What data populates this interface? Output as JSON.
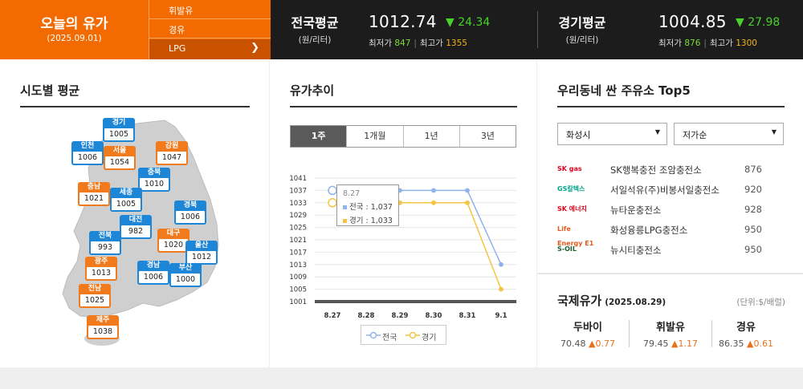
{
  "header": {
    "today_title": "오늘의 유가",
    "today_date": "(2025.09.01)",
    "fuels": [
      "휘발유",
      "경유",
      "LPG"
    ],
    "selected_fuel": "LPG",
    "national": {
      "label": "전국평균",
      "unit": "(원/리터)",
      "price": "1012.74",
      "change": "▼ 24.34",
      "min_label": "최저가",
      "min": "847",
      "max_label": "최고가",
      "max": "1355"
    },
    "gyeonggi": {
      "label": "경기평균",
      "unit": "(원/리터)",
      "price": "1004.85",
      "change": "▼ 27.98",
      "min_label": "최저가",
      "min": "876",
      "max_label": "최고가",
      "max": "1300"
    }
  },
  "regional": {
    "title": "시도별 평균",
    "regions": [
      {
        "name": "경기",
        "value": "1005",
        "color": "blue"
      },
      {
        "name": "인천",
        "value": "1006",
        "color": "blue"
      },
      {
        "name": "서울",
        "value": "1054",
        "color": "orange"
      },
      {
        "name": "강원",
        "value": "1047",
        "color": "orange"
      },
      {
        "name": "충북",
        "value": "1010",
        "color": "blue"
      },
      {
        "name": "충남",
        "value": "1021",
        "color": "orange"
      },
      {
        "name": "세종",
        "value": "1005",
        "color": "blue"
      },
      {
        "name": "경북",
        "value": "1006",
        "color": "blue"
      },
      {
        "name": "대전",
        "value": "982",
        "color": "blue"
      },
      {
        "name": "전북",
        "value": "993",
        "color": "blue"
      },
      {
        "name": "대구",
        "value": "1020",
        "color": "orange"
      },
      {
        "name": "울산",
        "value": "1012",
        "color": "blue"
      },
      {
        "name": "광주",
        "value": "1013",
        "color": "orange"
      },
      {
        "name": "경남",
        "value": "1006",
        "color": "blue"
      },
      {
        "name": "부산",
        "value": "1000",
        "color": "blue"
      },
      {
        "name": "전남",
        "value": "1025",
        "color": "orange"
      },
      {
        "name": "제주",
        "value": "1038",
        "color": "orange"
      }
    ]
  },
  "trend": {
    "title": "유가추이",
    "tabs": [
      "1주",
      "1개월",
      "1년",
      "3년"
    ],
    "selected_tab": "1주",
    "tooltip": {
      "date": "8.27",
      "national": "전국 : 1,037",
      "gyeonggi": "경기 : 1,033"
    }
  },
  "chart_data": {
    "type": "line",
    "x": [
      "8.27",
      "8.28",
      "8.29",
      "8.30",
      "8.31",
      "9.1"
    ],
    "series": [
      {
        "name": "전국",
        "values": [
          1037,
          1037,
          1037,
          1037,
          1037,
          1013
        ],
        "color": "#8fb4ea"
      },
      {
        "name": "경기",
        "values": [
          1033,
          1033,
          1033,
          1033,
          1033,
          1005
        ],
        "color": "#f4c542"
      }
    ],
    "yticks": [
      1041,
      1037,
      1033,
      1029,
      1025,
      1021,
      1017,
      1013,
      1009,
      1005,
      1001
    ],
    "ylim": [
      1001,
      1041
    ],
    "grid": true,
    "legend": "bottom"
  },
  "stations": {
    "title": "우리동네 싼 주유소 Top5",
    "city": "화성시",
    "sort": "저가순",
    "items": [
      {
        "logo": "SK gas",
        "logo_color": "#e2001a",
        "name": "SK행복충전 조암충전소",
        "price": "876"
      },
      {
        "logo": "GS칼텍스",
        "logo_color": "#00a38a",
        "name": "서일석유(주)비봉서일충전소",
        "price": "920"
      },
      {
        "logo": "SK 에너지",
        "logo_color": "#e2001a",
        "name": "뉴타운충전소",
        "price": "928"
      },
      {
        "logo": "Life Energy E1",
        "logo_color": "#e65a1e",
        "name": "화성융릉LPG충전소",
        "price": "950"
      },
      {
        "logo": "S-OIL",
        "logo_color": "#1a5f2f",
        "name": "뉴시티충전소",
        "price": "950"
      }
    ]
  },
  "international": {
    "title": "국제유가",
    "date": "(2025.08.29)",
    "unit": "(단위:$/배럴)",
    "items": [
      {
        "name": "두바이",
        "price": "70.48",
        "change": "▲0.77"
      },
      {
        "name": "휘발유",
        "price": "79.45",
        "change": "▲1.17"
      },
      {
        "name": "경유",
        "price": "86.35",
        "change": "▲0.61"
      }
    ]
  }
}
